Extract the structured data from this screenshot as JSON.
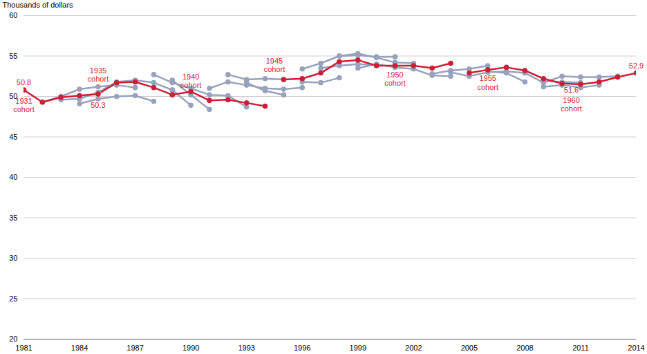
{
  "chart_data": {
    "type": "line",
    "ylabel": "Thousands of dollars",
    "xlim": [
      1981,
      2014
    ],
    "xticks": [
      1981,
      1984,
      1987,
      1990,
      1993,
      1996,
      1999,
      2002,
      2005,
      2008,
      2011,
      2014
    ],
    "ylim": [
      20,
      60
    ],
    "yticks": [
      20,
      25,
      30,
      35,
      40,
      45,
      50,
      55,
      60
    ],
    "grid": true,
    "marker": "circle",
    "series": [
      {
        "color": "#98a2bd",
        "x": [
          1982,
          1983,
          1984,
          1985,
          1986,
          1987
        ],
        "values": [
          49.3,
          50.0,
          50.9,
          51.2,
          51.4,
          51.1
        ]
      },
      {
        "color": "#98a2bd",
        "x": [
          1983,
          1984,
          1985,
          1986,
          1987,
          1988,
          1989
        ],
        "values": [
          49.6,
          49.7,
          50.5,
          51.8,
          52.0,
          51.7,
          50.8
        ]
      },
      {
        "color": "#98a2bd",
        "x": [
          1984,
          1985,
          1986,
          1987,
          1988
        ],
        "values": [
          49.1,
          49.7,
          50.0,
          50.1,
          49.4
        ]
      },
      {
        "color": "#98a2bd",
        "x": [
          1988,
          1989,
          1990,
          1991,
          1992,
          1993
        ],
        "values": [
          52.7,
          51.7,
          51.0,
          50.2,
          50.1,
          48.7
        ]
      },
      {
        "color": "#98a2bd",
        "x": [
          1989,
          1990,
          1991
        ],
        "values": [
          52.0,
          50.2,
          48.4
        ]
      },
      {
        "color": "#98a2bd",
        "x": [
          1989,
          1990
        ],
        "values": [
          50.8,
          48.9
        ]
      },
      {
        "color": "#98a2bd",
        "x": [
          1991,
          1992,
          1993,
          1994,
          1995,
          1996
        ],
        "values": [
          51.0,
          51.8,
          51.4,
          51.0,
          50.9,
          51.1
        ]
      },
      {
        "color": "#98a2bd",
        "x": [
          1992,
          1993,
          1994,
          1995
        ],
        "values": [
          52.7,
          52.1,
          52.2,
          52.1
        ]
      },
      {
        "color": "#98a2bd",
        "x": [
          1993,
          1994,
          1995
        ],
        "values": [
          51.7,
          50.7,
          50.2
        ]
      },
      {
        "color": "#98a2bd",
        "x": [
          1996,
          1997,
          1998,
          1999,
          2000,
          2001
        ],
        "values": [
          53.4,
          54.1,
          55.0,
          55.1,
          54.9,
          54.9
        ]
      },
      {
        "color": "#98a2bd",
        "x": [
          1996,
          1997,
          1998
        ],
        "values": [
          51.8,
          51.7,
          52.3
        ]
      },
      {
        "color": "#98a2bd",
        "x": [
          1997,
          1998,
          1999,
          2000
        ],
        "values": [
          53.5,
          53.8,
          54.0,
          53.9
        ]
      },
      {
        "color": "#98a2bd",
        "x": [
          1998,
          1999,
          2000,
          2001,
          2002
        ],
        "values": [
          55.0,
          55.3,
          54.8,
          54.2,
          54.1
        ]
      },
      {
        "color": "#98a2bd",
        "x": [
          1999,
          2000,
          2001,
          2002,
          2003,
          2004
        ],
        "values": [
          53.5,
          54.0,
          53.6,
          53.4,
          52.6,
          52.5
        ]
      },
      {
        "color": "#98a2bd",
        "x": [
          2003,
          2004,
          2005,
          2006
        ],
        "values": [
          52.8,
          53.2,
          53.4,
          53.8
        ]
      },
      {
        "color": "#98a2bd",
        "x": [
          2004,
          2005,
          2006,
          2007,
          2008
        ],
        "values": [
          53.0,
          52.5,
          53.0,
          53.1,
          52.9
        ]
      },
      {
        "color": "#98a2bd",
        "x": [
          2006,
          2007,
          2008
        ],
        "values": [
          53.1,
          52.9,
          51.8
        ]
      },
      {
        "color": "#98a2bd",
        "x": [
          2008,
          2009,
          2010,
          2011,
          2012,
          2013
        ],
        "values": [
          52.9,
          51.7,
          52.5,
          52.4,
          52.4,
          52.5
        ]
      },
      {
        "color": "#98a2bd",
        "x": [
          2009,
          2010,
          2011,
          2012
        ],
        "values": [
          51.2,
          51.4,
          51.1,
          51.4
        ]
      },
      {
        "color": "#98a2bd",
        "x": [
          2009,
          2010,
          2011
        ],
        "values": [
          51.9,
          51.8,
          51.7
        ]
      },
      {
        "color": "#cc1f36",
        "x": [
          1981,
          1982,
          1983,
          1984,
          1985,
          1986,
          1987,
          1988,
          1989,
          1990,
          1991,
          1992,
          1993,
          1994
        ],
        "values": [
          50.8,
          49.3,
          49.9,
          50.1,
          50.3,
          51.7,
          51.8,
          51.1,
          50.2,
          50.6,
          49.5,
          49.6,
          49.2,
          48.8
        ]
      },
      {
        "color": "#cc1f36",
        "x": [
          1995,
          1996,
          1997,
          1998,
          1999,
          2000,
          2001,
          2002,
          2003,
          2004
        ],
        "values": [
          52.1,
          52.2,
          52.9,
          54.3,
          54.5,
          53.8,
          53.8,
          53.8,
          53.5,
          54.1
        ]
      },
      {
        "color": "#cc1f36",
        "x": [
          2005,
          2006,
          2007,
          2008,
          2009,
          2010,
          2011,
          2012,
          2013,
          2014
        ],
        "values": [
          52.9,
          53.3,
          53.6,
          53.2,
          52.2,
          51.6,
          51.5,
          51.8,
          52.4,
          52.9
        ]
      }
    ],
    "annotations": [
      {
        "text": "50.8",
        "x": 1981,
        "y": 51.7,
        "color": "#cc1f36"
      },
      {
        "text": "1931 cohort",
        "x": 1981,
        "y": 48.9,
        "color": "#cc1f36"
      },
      {
        "text": "1935 cohort",
        "x": 1985,
        "y": 52.7,
        "color": "#cc1f36"
      },
      {
        "text": "50.3",
        "x": 1985,
        "y": 48.9,
        "color": "#cc1f36"
      },
      {
        "text": "1940 cohort",
        "x": 1990,
        "y": 51.9,
        "color": "#cc1f36"
      },
      {
        "text": "1945 cohort",
        "x": 1994.5,
        "y": 53.9,
        "color": "#cc1f36"
      },
      {
        "text": "1950 cohort",
        "x": 2001,
        "y": 52.2,
        "color": "#cc1f36"
      },
      {
        "text": "1955 cohort",
        "x": 2006,
        "y": 51.7,
        "color": "#cc1f36"
      },
      {
        "text": "51.6",
        "x": 2010.5,
        "y": 50.8,
        "color": "#cc1f36"
      },
      {
        "text": "1960 cohort",
        "x": 2010.5,
        "y": 49.0,
        "color": "#cc1f36"
      },
      {
        "text": "52.9",
        "x": 2014,
        "y": 53.8,
        "color": "#cc1f36"
      }
    ]
  }
}
